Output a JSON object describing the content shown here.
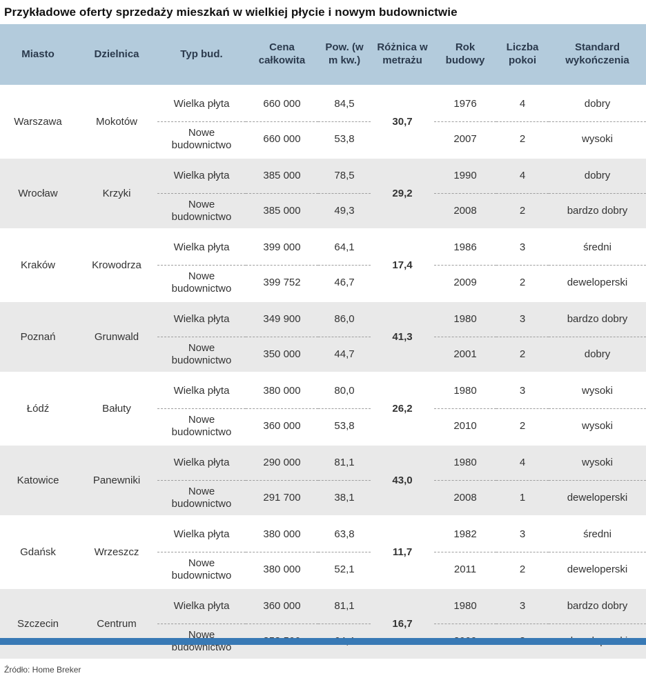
{
  "title": "Przykładowe oferty sprzedaży mieszkań w wielkiej płycie i nowym budownictwie",
  "source": "Źródło: Home Breker",
  "columns": [
    "Miasto",
    "Dzielnica",
    "Typ bud.",
    "Cena całkowita",
    "Pow. (w m kw.)",
    "Różnica w metrażu",
    "Rok budowy",
    "Liczba pokoi",
    "Standard wykończenia"
  ],
  "colors": {
    "header_bg": "#b3cbdc",
    "alt_group_bg": "#e9e9e9",
    "footer_bar": "#3879b5"
  },
  "groups": [
    {
      "city": "Warszawa",
      "district": "Mokotów",
      "diff": "30,7",
      "rows": [
        {
          "type": "Wielka płyta",
          "price": "660 000",
          "area": "84,5",
          "year": "1976",
          "rooms": "4",
          "standard": "dobry"
        },
        {
          "type": "Nowe budownictwo",
          "price": "660 000",
          "area": "53,8",
          "year": "2007",
          "rooms": "2",
          "standard": "wysoki"
        }
      ]
    },
    {
      "city": "Wrocław",
      "district": "Krzyki",
      "diff": "29,2",
      "rows": [
        {
          "type": "Wielka płyta",
          "price": "385 000",
          "area": "78,5",
          "year": "1990",
          "rooms": "4",
          "standard": "dobry"
        },
        {
          "type": "Nowe budownictwo",
          "price": "385 000",
          "area": "49,3",
          "year": "2008",
          "rooms": "2",
          "standard": "bardzo dobry"
        }
      ]
    },
    {
      "city": "Kraków",
      "district": "Krowodrza",
      "diff": "17,4",
      "rows": [
        {
          "type": "Wielka płyta",
          "price": "399 000",
          "area": "64,1",
          "year": "1986",
          "rooms": "3",
          "standard": "średni"
        },
        {
          "type": "Nowe budownictwo",
          "price": "399 752",
          "area": "46,7",
          "year": "2009",
          "rooms": "2",
          "standard": "deweloperski"
        }
      ]
    },
    {
      "city": "Poznań",
      "district": "Grunwald",
      "diff": "41,3",
      "rows": [
        {
          "type": "Wielka płyta",
          "price": "349 900",
          "area": "86,0",
          "year": "1980",
          "rooms": "3",
          "standard": "bardzo dobry"
        },
        {
          "type": "Nowe budownictwo",
          "price": "350 000",
          "area": "44,7",
          "year": "2001",
          "rooms": "2",
          "standard": "dobry"
        }
      ]
    },
    {
      "city": "Łódź",
      "district": "Bałuty",
      "diff": "26,2",
      "rows": [
        {
          "type": "Wielka płyta",
          "price": "380 000",
          "area": "80,0",
          "year": "1980",
          "rooms": "3",
          "standard": "wysoki"
        },
        {
          "type": "Nowe budownictwo",
          "price": "360 000",
          "area": "53,8",
          "year": "2010",
          "rooms": "2",
          "standard": "wysoki"
        }
      ]
    },
    {
      "city": "Katowice",
      "district": "Panewniki",
      "diff": "43,0",
      "rows": [
        {
          "type": "Wielka płyta",
          "price": "290 000",
          "area": "81,1",
          "year": "1980",
          "rooms": "4",
          "standard": "wysoki"
        },
        {
          "type": "Nowe budownictwo",
          "price": "291 700",
          "area": "38,1",
          "year": "2008",
          "rooms": "1",
          "standard": "deweloperski"
        }
      ]
    },
    {
      "city": "Gdańsk",
      "district": "Wrzeszcz",
      "diff": "11,7",
      "rows": [
        {
          "type": "Wielka płyta",
          "price": "380 000",
          "area": "63,8",
          "year": "1982",
          "rooms": "3",
          "standard": "średni"
        },
        {
          "type": "Nowe budownictwo",
          "price": "380 000",
          "area": "52,1",
          "year": "2011",
          "rooms": "2",
          "standard": "deweloperski"
        }
      ]
    },
    {
      "city": "Szczecin",
      "district": "Centrum",
      "diff": "16,7",
      "rows": [
        {
          "type": "Wielka płyta",
          "price": "360 000",
          "area": "81,1",
          "year": "1980",
          "rooms": "3",
          "standard": "bardzo dobry"
        },
        {
          "type": "Nowe budownictwo",
          "price": "353 500",
          "area": "64,4",
          "year": "2009",
          "rooms": "3",
          "standard": "deweloperski"
        }
      ]
    }
  ],
  "chart_data": {
    "type": "table",
    "title": "Przykładowe oferty sprzedaży mieszkań w wielkiej płycie i nowym budownictwie",
    "columns": [
      "Miasto",
      "Dzielnica",
      "Typ bud.",
      "Cena całkowita",
      "Pow. (w m kw.)",
      "Różnica w metrażu",
      "Rok budowy",
      "Liczba pokoi",
      "Standard wykończenia"
    ],
    "rows": [
      [
        "Warszawa",
        "Mokotów",
        "Wielka płyta",
        "660 000",
        "84,5",
        "30,7",
        "1976",
        "4",
        "dobry"
      ],
      [
        "Warszawa",
        "Mokotów",
        "Nowe budownictwo",
        "660 000",
        "53,8",
        "30,7",
        "2007",
        "2",
        "wysoki"
      ],
      [
        "Wrocław",
        "Krzyki",
        "Wielka płyta",
        "385 000",
        "78,5",
        "29,2",
        "1990",
        "4",
        "dobry"
      ],
      [
        "Wrocław",
        "Krzyki",
        "Nowe budownictwo",
        "385 000",
        "49,3",
        "29,2",
        "2008",
        "2",
        "bardzo dobry"
      ],
      [
        "Kraków",
        "Krowodrza",
        "Wielka płyta",
        "399 000",
        "64,1",
        "17,4",
        "1986",
        "3",
        "średni"
      ],
      [
        "Kraków",
        "Krowodrza",
        "Nowe budownictwo",
        "399 752",
        "46,7",
        "17,4",
        "2009",
        "2",
        "deweloperski"
      ],
      [
        "Poznań",
        "Grunwald",
        "Wielka płyta",
        "349 900",
        "86,0",
        "41,3",
        "1980",
        "3",
        "bardzo dobry"
      ],
      [
        "Poznań",
        "Grunwald",
        "Nowe budownictwo",
        "350 000",
        "44,7",
        "41,3",
        "2001",
        "2",
        "dobry"
      ],
      [
        "Łódź",
        "Bałuty",
        "Wielka płyta",
        "380 000",
        "80,0",
        "26,2",
        "1980",
        "3",
        "wysoki"
      ],
      [
        "Łódź",
        "Bałuty",
        "Nowe budownictwo",
        "360 000",
        "53,8",
        "26,2",
        "2010",
        "2",
        "wysoki"
      ],
      [
        "Katowice",
        "Panewniki",
        "Wielka płyta",
        "290 000",
        "81,1",
        "43,0",
        "1980",
        "4",
        "wysoki"
      ],
      [
        "Katowice",
        "Panewniki",
        "Nowe budownictwo",
        "291 700",
        "38,1",
        "43,0",
        "2008",
        "1",
        "deweloperski"
      ],
      [
        "Gdańsk",
        "Wrzeszcz",
        "Wielka płyta",
        "380 000",
        "63,8",
        "11,7",
        "1982",
        "3",
        "średni"
      ],
      [
        "Gdańsk",
        "Wrzeszcz",
        "Nowe budownictwo",
        "380 000",
        "52,1",
        "11,7",
        "2011",
        "2",
        "deweloperski"
      ],
      [
        "Szczecin",
        "Centrum",
        "Wielka płyta",
        "360 000",
        "81,1",
        "16,7",
        "1980",
        "3",
        "bardzo dobry"
      ],
      [
        "Szczecin",
        "Centrum",
        "Nowe budownictwo",
        "353 500",
        "64,4",
        "16,7",
        "2009",
        "3",
        "deweloperski"
      ]
    ]
  }
}
